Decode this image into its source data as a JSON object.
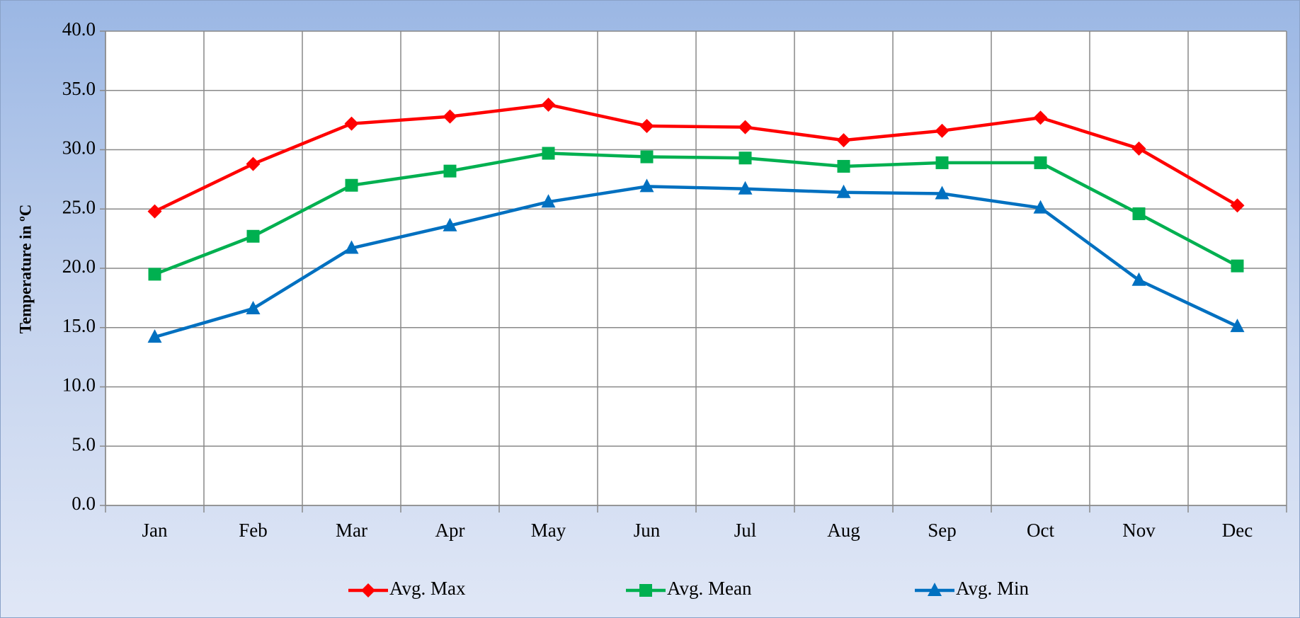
{
  "chart_data": {
    "type": "line",
    "y_label": "Temperature in ºC",
    "categories": [
      "Jan",
      "Feb",
      "Mar",
      "Apr",
      "May",
      "Jun",
      "Jul",
      "Aug",
      "Sep",
      "Oct",
      "Nov",
      "Dec"
    ],
    "series": [
      {
        "name": "Avg. Max",
        "color": "#ff0000",
        "marker": "diamond",
        "values": [
          24.8,
          28.8,
          32.2,
          32.8,
          33.8,
          32.0,
          31.9,
          30.8,
          31.6,
          32.7,
          30.1,
          25.3
        ]
      },
      {
        "name": "Avg. Mean",
        "color": "#00b050",
        "marker": "square",
        "values": [
          19.5,
          22.7,
          27.0,
          28.2,
          29.7,
          29.4,
          29.3,
          28.6,
          28.9,
          28.9,
          24.6,
          20.2
        ]
      },
      {
        "name": "Avg. Min",
        "color": "#0070c0",
        "marker": "triangle",
        "values": [
          14.2,
          16.6,
          21.7,
          23.6,
          25.6,
          26.9,
          26.7,
          26.4,
          26.3,
          25.1,
          19.0,
          15.1
        ]
      }
    ],
    "ylim": [
      0,
      40
    ],
    "yticks": [
      {
        "value": 0,
        "label": "0.0"
      },
      {
        "value": 5,
        "label": "5.0"
      },
      {
        "value": 10,
        "label": "10.0"
      },
      {
        "value": 15,
        "label": "15.0"
      },
      {
        "value": 20,
        "label": "20.0"
      },
      {
        "value": 25,
        "label": "25.0"
      },
      {
        "value": 30,
        "label": "30.0"
      },
      {
        "value": 35,
        "label": "35.0"
      },
      {
        "value": 40,
        "label": "40.0"
      }
    ],
    "grid": true,
    "legend": "bottom"
  }
}
